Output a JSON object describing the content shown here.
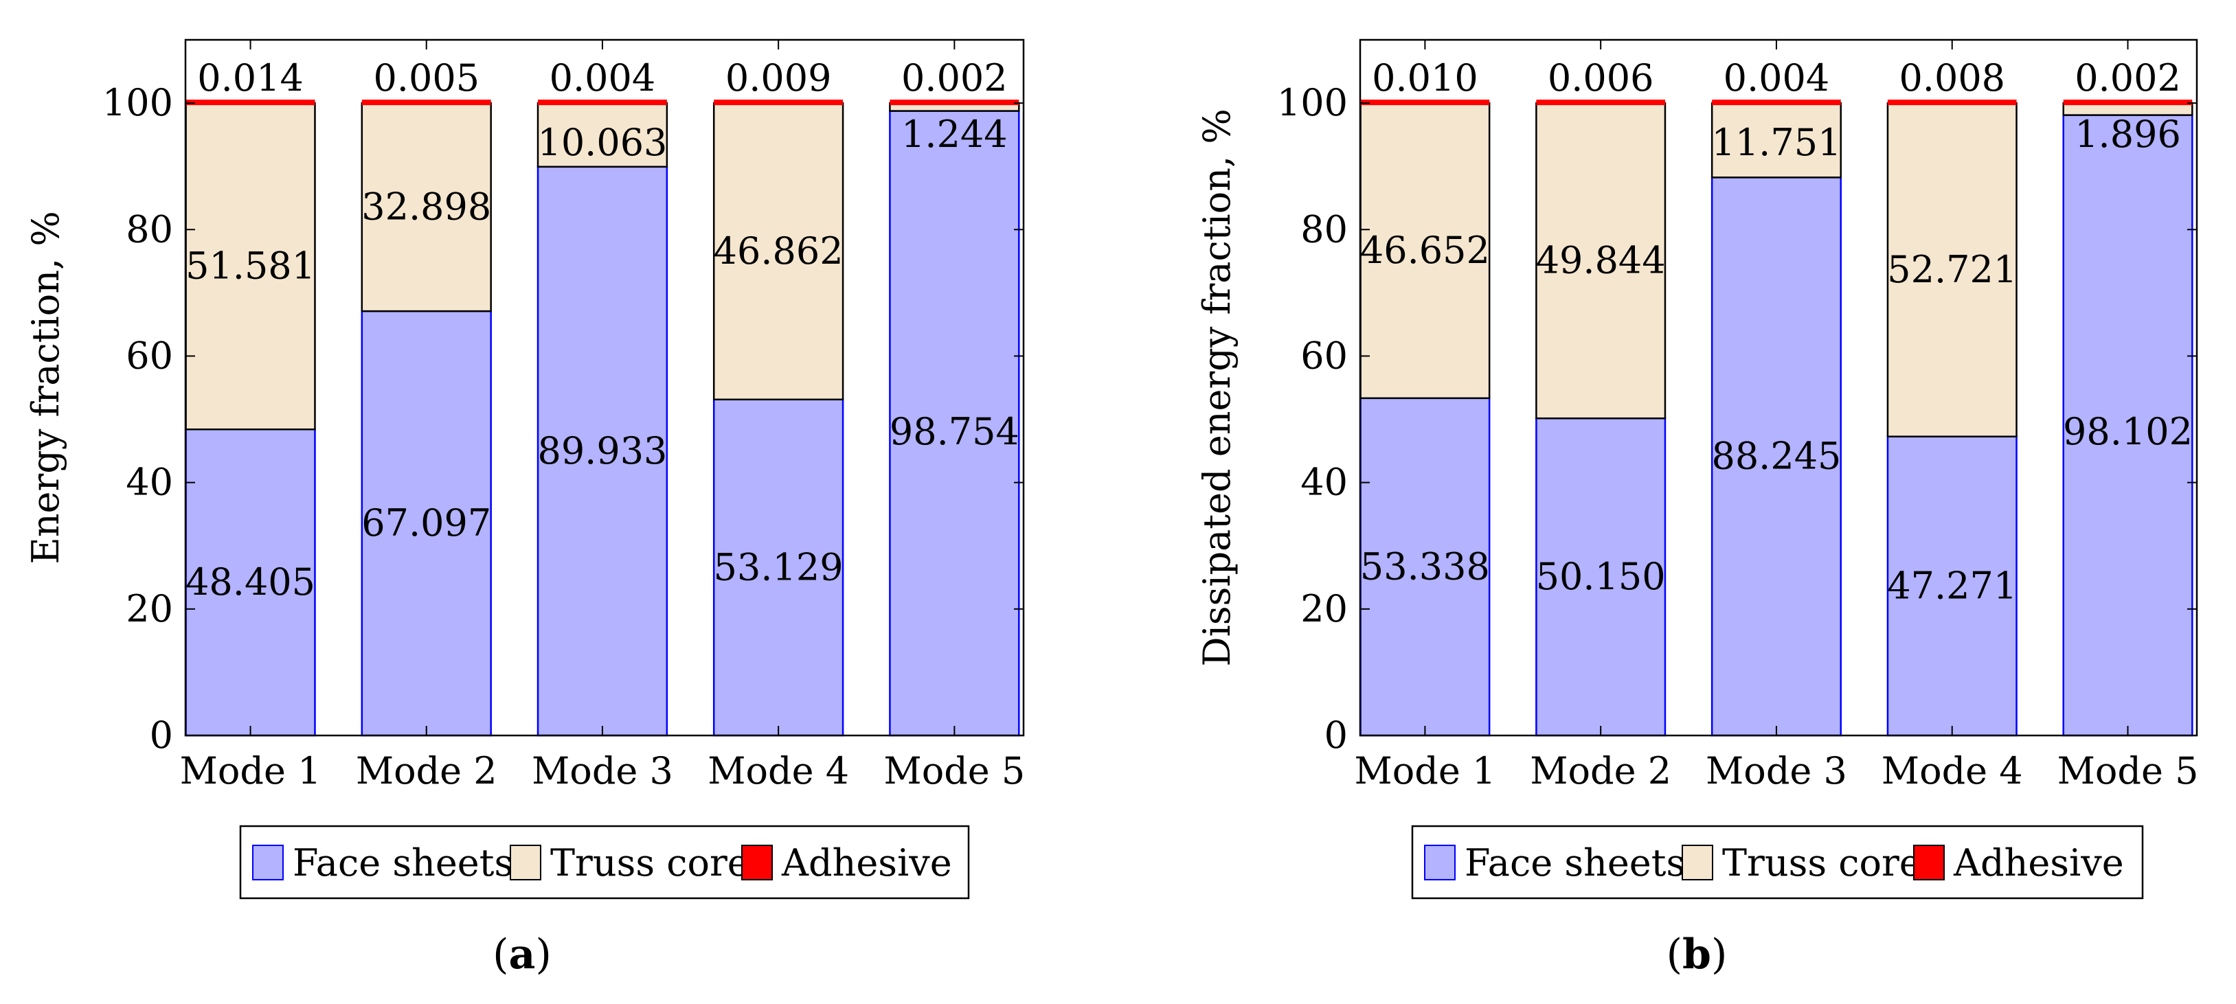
{
  "colors": {
    "face_sheets": "#b3b3ff",
    "face_sheets_stroke": "#0000ff",
    "truss_core": "#f5e6cf",
    "adhesive": "#ff0000",
    "axis": "#000000"
  },
  "legend": {
    "items": [
      {
        "label": "Face sheets",
        "color": "#b3b3ff"
      },
      {
        "label": "Truss core",
        "color": "#f5e6cf"
      },
      {
        "label": "Adhesive",
        "color": "#ff0000"
      }
    ]
  },
  "chart_data": [
    {
      "type": "bar",
      "stacked": true,
      "caption": "(a)",
      "caption_letter": "a",
      "title": "",
      "xlabel": "",
      "ylabel": "Energy fraction, %",
      "ylim": [
        0,
        110
      ],
      "yticks": [
        0,
        20,
        40,
        60,
        80,
        100
      ],
      "categories": [
        "Mode 1",
        "Mode 2",
        "Mode 3",
        "Mode 4",
        "Mode 5"
      ],
      "series": [
        {
          "name": "Face sheets",
          "values": [
            48.405,
            67.097,
            89.933,
            53.129,
            98.754
          ],
          "labels": [
            "48.405",
            "67.097",
            "89.933",
            "53.129",
            "98.754"
          ]
        },
        {
          "name": "Truss core",
          "values": [
            51.581,
            32.898,
            10.063,
            46.862,
            1.244
          ],
          "labels": [
            "51.581",
            "32.898",
            "10.063",
            "46.862",
            "1.244"
          ]
        },
        {
          "name": "Adhesive",
          "values": [
            0.014,
            0.005,
            0.004,
            0.009,
            0.002
          ],
          "labels": [
            "0.014",
            "0.005",
            "0.004",
            "0.009",
            "0.002"
          ]
        }
      ],
      "legend_position": "bottom"
    },
    {
      "type": "bar",
      "stacked": true,
      "caption": "(b)",
      "caption_letter": "b",
      "title": "",
      "xlabel": "",
      "ylabel": "Dissipated energy fraction, %",
      "ylim": [
        0,
        110
      ],
      "yticks": [
        0,
        20,
        40,
        60,
        80,
        100
      ],
      "categories": [
        "Mode 1",
        "Mode 2",
        "Mode 3",
        "Mode 4",
        "Mode 5"
      ],
      "series": [
        {
          "name": "Face sheets",
          "values": [
            53.338,
            50.15,
            88.245,
            47.271,
            98.102
          ],
          "labels": [
            "53.338",
            "50.150",
            "88.245",
            "47.271",
            "98.102"
          ]
        },
        {
          "name": "Truss core",
          "values": [
            46.652,
            49.844,
            11.751,
            52.721,
            1.896
          ],
          "labels": [
            "46.652",
            "49.844",
            "11.751",
            "52.721",
            "1.896"
          ]
        },
        {
          "name": "Adhesive",
          "values": [
            0.01,
            0.006,
            0.004,
            0.008,
            0.002
          ],
          "labels": [
            "0.010",
            "0.006",
            "0.004",
            "0.008",
            "0.002"
          ]
        }
      ],
      "legend_position": "bottom"
    }
  ]
}
